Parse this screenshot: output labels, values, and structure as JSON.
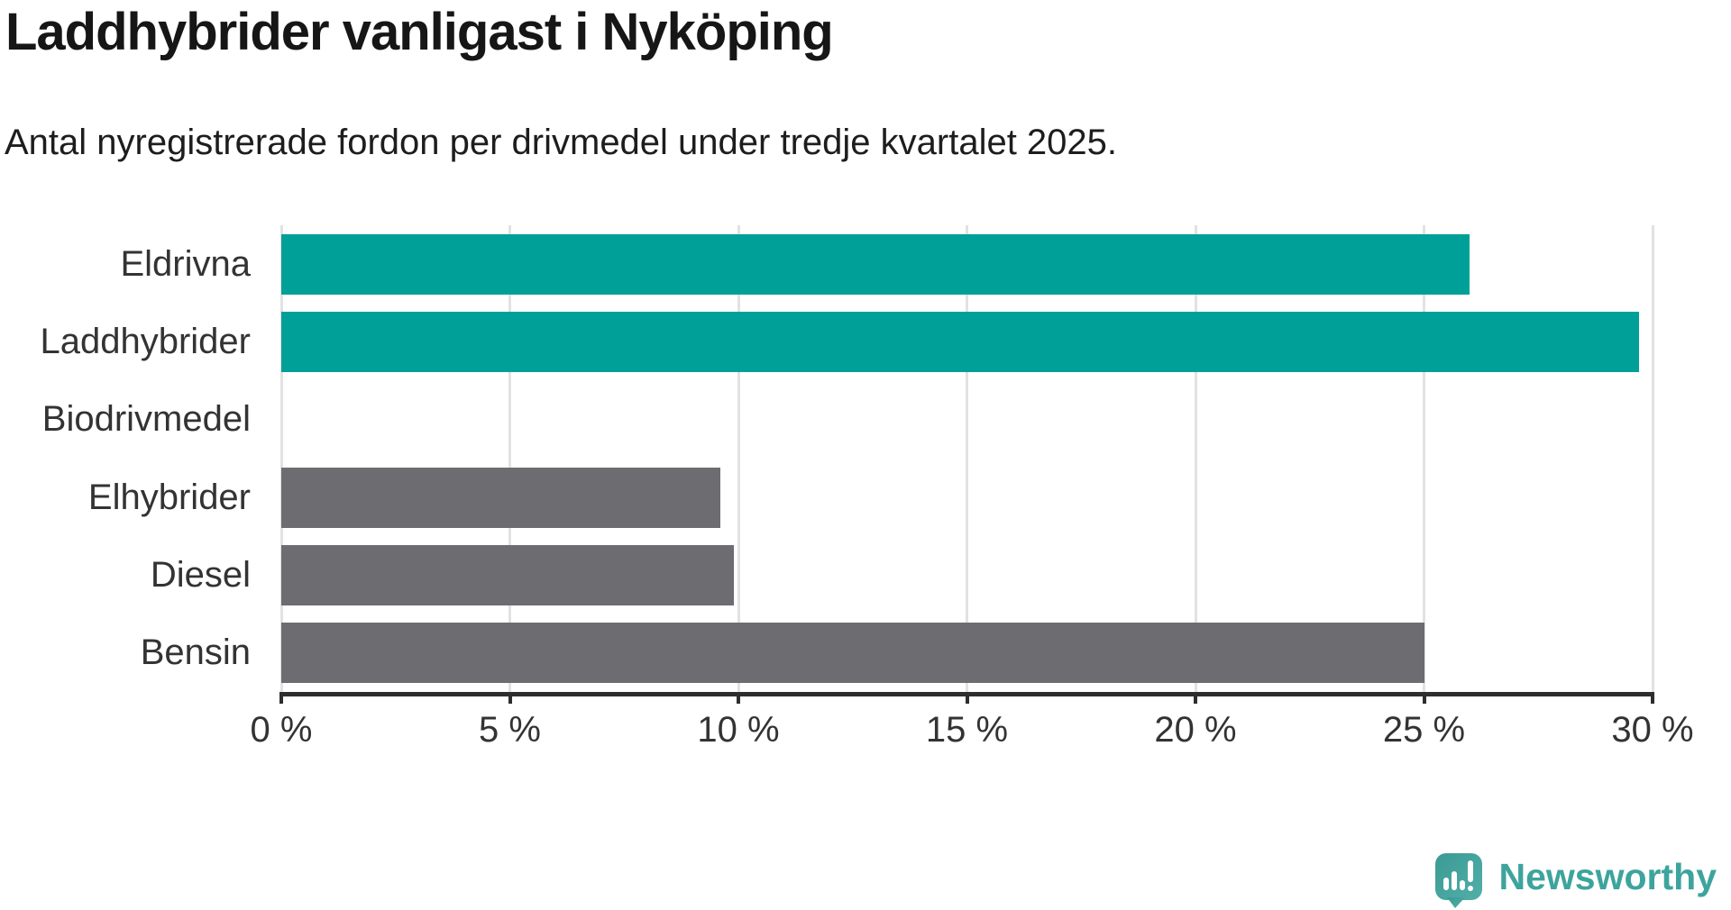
{
  "header": {
    "title": "Laddhybrider vanligast i Nyköping",
    "subtitle": "Antal nyregistrerade fordon per drivmedel under tredje kvartalet 2025."
  },
  "chart_data": {
    "type": "bar",
    "orientation": "horizontal",
    "title": "Laddhybrider vanligast i Nyköping",
    "subtitle": "Antal nyregistrerade fordon per drivmedel under tredje kvartalet 2025.",
    "categories": [
      "Eldrivna",
      "Laddhybrider",
      "Biodrivmedel",
      "Elhybrider",
      "Diesel",
      "Bensin"
    ],
    "values": [
      26.0,
      29.7,
      0,
      9.6,
      9.9,
      25.0
    ],
    "unit": "%",
    "xlim": [
      0,
      30
    ],
    "xticks": [
      0,
      5,
      10,
      15,
      20,
      25,
      30
    ],
    "xtick_suffix": " %",
    "grid": true,
    "legend": "none",
    "bar_colors": [
      "#00a099",
      "#00a099",
      "#6c6c71",
      "#6c6c71",
      "#6c6c71",
      "#6c6c71"
    ],
    "highlight_color": "#00a099",
    "default_color": "#6c6c71",
    "gridline_color": "#e2e2e2",
    "axis_color": "#2e2e2e",
    "label_color": "#333333"
  },
  "footer": {
    "brand": "Newsworthy",
    "brand_color": "#3da49d",
    "icon": "newsworthy-speech-bubble-bar-chart-icon",
    "icon_color_top": "#3b9a95",
    "icon_color_bottom": "#52afa8"
  }
}
